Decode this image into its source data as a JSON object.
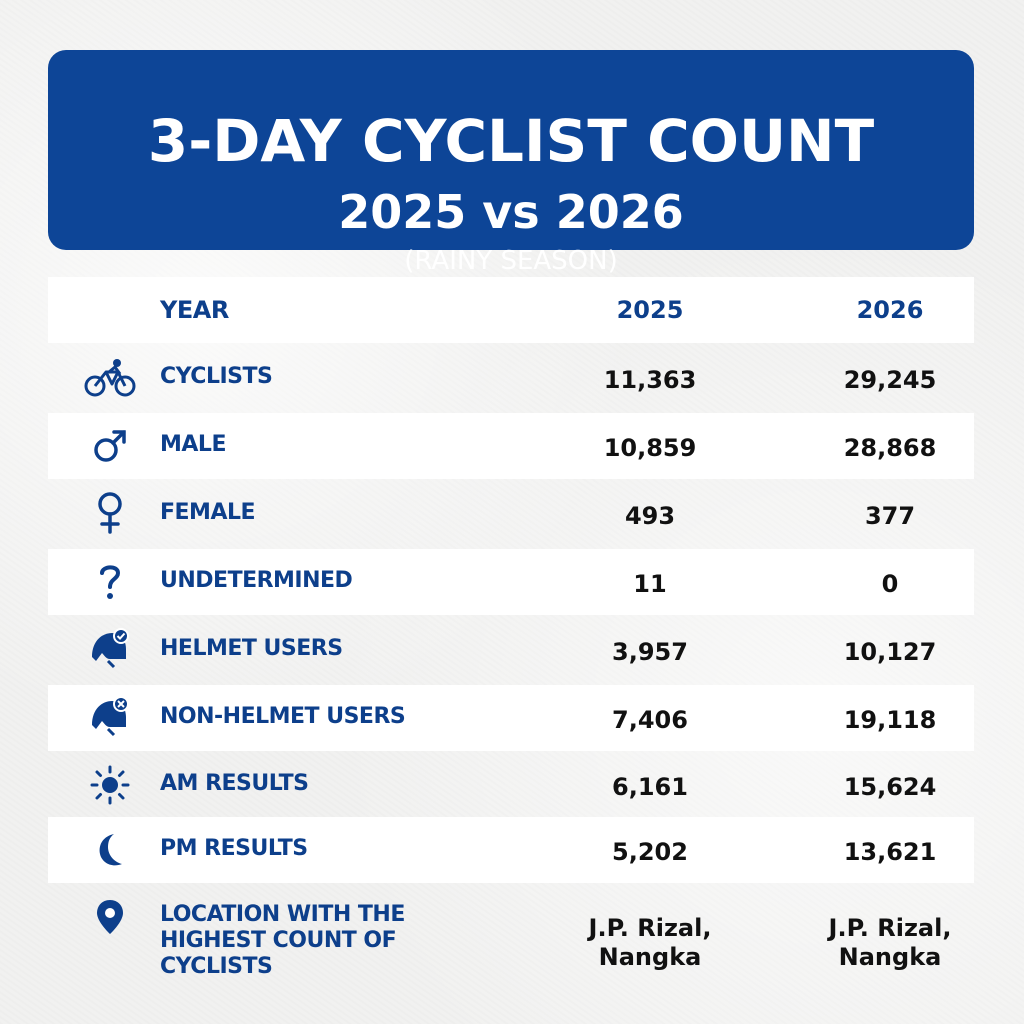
{
  "banner": {
    "title": "3-DAY CYCLIST COUNT",
    "subtitle": "2025 vs 2026",
    "season": "(RAINY SEASON)"
  },
  "colors": {
    "banner_bg": "#0d4597",
    "label_text": "#0d3f8b",
    "value_text": "#111111",
    "row_bg": "#ffffff"
  },
  "table": {
    "header": {
      "label": "YEAR",
      "col1": "2025",
      "col2": "2026"
    },
    "rows": [
      {
        "icon": "bicycle-icon",
        "label": "CYCLISTS",
        "v2025": "11,363",
        "v2026": "29,245"
      },
      {
        "icon": "male-symbol-icon",
        "label": "MALE",
        "v2025": "10,859",
        "v2026": "28,868"
      },
      {
        "icon": "female-symbol-icon",
        "label": "FEMALE",
        "v2025": "493",
        "v2026": "377"
      },
      {
        "icon": "question-mark-icon",
        "label": "UNDETERMINED",
        "v2025": "11",
        "v2026": "0"
      },
      {
        "icon": "helmet-check-icon",
        "label": "HELMET USERS",
        "v2025": "3,957",
        "v2026": "10,127"
      },
      {
        "icon": "helmet-x-icon",
        "label": "NON-HELMET USERS",
        "v2025": "7,406",
        "v2026": "19,118"
      },
      {
        "icon": "sun-icon",
        "label": "AM RESULTS",
        "v2025": "6,161",
        "v2026": "15,624"
      },
      {
        "icon": "moon-icon",
        "label": "PM RESULTS",
        "v2025": "5,202",
        "v2026": "13,621"
      }
    ],
    "location": {
      "icon": "location-pin-icon",
      "label_lines": [
        "LOCATION WITH THE",
        "HIGHEST COUNT OF",
        "CYCLISTS"
      ],
      "v2025_lines": [
        "J.P. Rizal,",
        "Nangka"
      ],
      "v2026_lines": [
        "J.P. Rizal,",
        "Nangka"
      ]
    }
  }
}
